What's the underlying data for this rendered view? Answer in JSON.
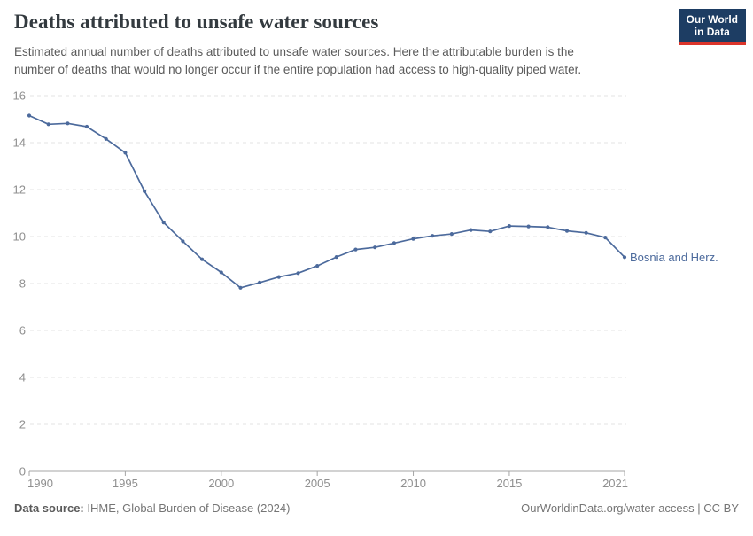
{
  "header": {
    "title": "Deaths attributed to unsafe water sources",
    "subtitle_lines": [
      "Estimated annual number of deaths attributed to unsafe water sources. Here the attributable burden is the",
      "number of deaths that would no longer occur if the entire population had access to high-quality piped water."
    ],
    "logo": {
      "line1": "Our World",
      "line2": "in Data"
    }
  },
  "chart_data": {
    "type": "line",
    "title": "Deaths attributed to unsafe water sources",
    "xlabel": "",
    "ylabel": "",
    "xlim": [
      1990,
      2021
    ],
    "ylim": [
      0,
      16
    ],
    "grid": "horizontal-dashed",
    "x_ticks": [
      1990,
      1995,
      2000,
      2005,
      2010,
      2015,
      2021
    ],
    "y_ticks": [
      0,
      2,
      4,
      6,
      8,
      10,
      12,
      14,
      16
    ],
    "series": [
      {
        "name": "Bosnia and Herz.",
        "color": "#4C6A9C",
        "x": [
          1990,
          1991,
          1992,
          1993,
          1994,
          1995,
          1996,
          1997,
          1998,
          1999,
          2000,
          2001,
          2002,
          2003,
          2004,
          2005,
          2006,
          2007,
          2008,
          2009,
          2010,
          2011,
          2012,
          2013,
          2014,
          2015,
          2016,
          2017,
          2018,
          2019,
          2020,
          2021
        ],
        "values": [
          15.15,
          14.78,
          14.82,
          14.68,
          14.16,
          13.57,
          11.93,
          10.6,
          9.8,
          9.03,
          8.47,
          7.82,
          8.04,
          8.28,
          8.44,
          8.75,
          9.13,
          9.45,
          9.54,
          9.72,
          9.9,
          10.03,
          10.11,
          10.28,
          10.22,
          10.45,
          10.43,
          10.4,
          10.24,
          10.16,
          9.96,
          9.12
        ]
      }
    ],
    "end_label": "Bosnia and Herz.",
    "legend_position": "end-of-line"
  },
  "footer": {
    "source_label": "Data source:",
    "source_text": " IHME, Global Burden of Disease (2024)",
    "license_text": "OurWorldinData.org/water-access | CC BY"
  },
  "colors": {
    "line": "#4C6A9C",
    "entity_label": "#4C6A9C",
    "gridline": "#e3e3e3",
    "axis_line": "#a5a5a5",
    "tick_label": "#8f8f8f",
    "logo_bg": "#1d3d63",
    "logo_accent": "#dc352b"
  }
}
